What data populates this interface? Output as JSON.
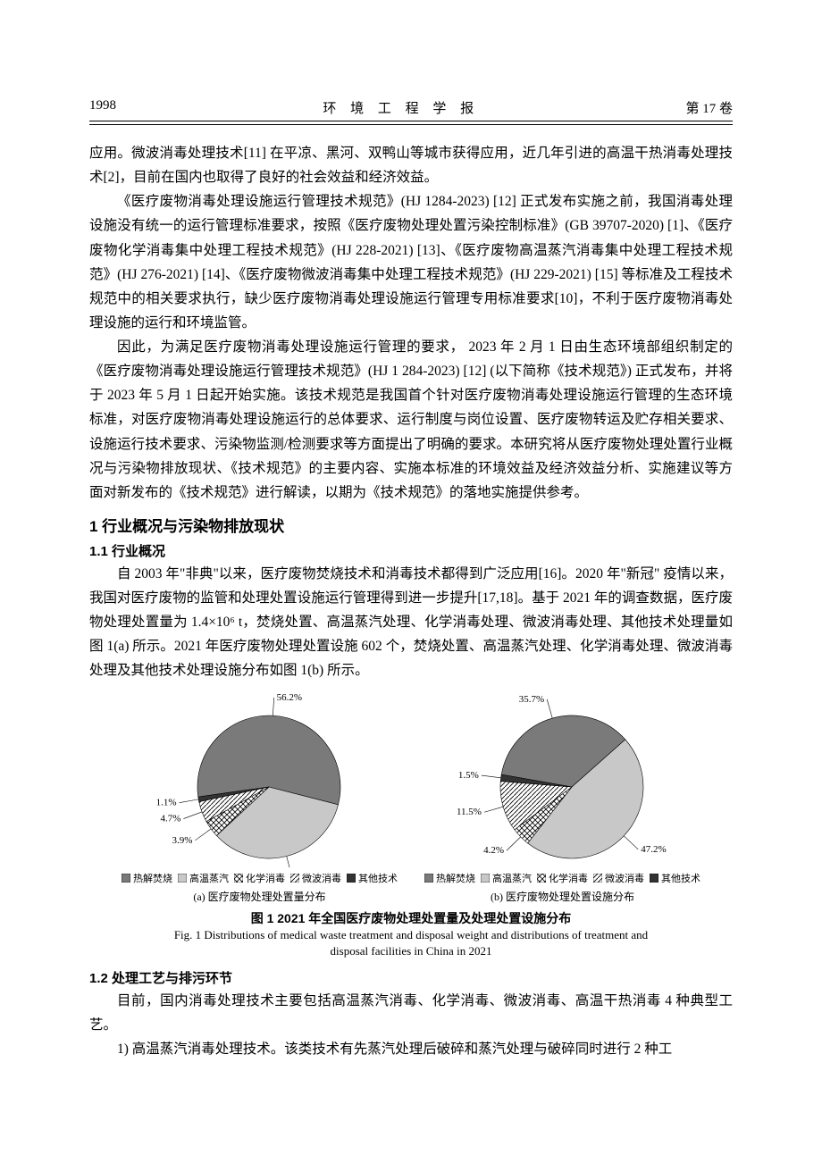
{
  "header": {
    "page_no": "1998",
    "journal": "环 境 工 程 学 报",
    "volume": "第 17 卷"
  },
  "paragraphs": {
    "p1": "应用。微波消毒处理技术[11] 在平凉、黑河、双鸭山等城市获得应用，近几年引进的高温干热消毒处理技术[2]，目前在国内也取得了良好的社会效益和经济效益。",
    "p2": "《医疗废物消毒处理设施运行管理技术规范》(HJ 1284-2023) [12] 正式发布实施之前，我国消毒处理设施没有统一的运行管理标准要求，按照《医疗废物处理处置污染控制标准》(GB 39707-2020) [1]、《医疗废物化学消毒集中处理工程技术规范》(HJ 228-2021) [13]、《医疗废物高温蒸汽消毒集中处理工程技术规范》(HJ 276-2021) [14]、《医疗废物微波消毒集中处理工程技术规范》(HJ 229-2021) [15] 等标准及工程技术规范中的相关要求执行，缺少医疗废物消毒处理设施运行管理专用标准要求[10]，不利于医疗废物消毒处理设施的运行和环境监管。",
    "p3": "因此，为满足医疗废物消毒处理设施运行管理的要求， 2023 年 2 月 1 日由生态环境部组织制定的《医疗废物消毒处理设施运行管理技术规范》(HJ 1 284-2023) [12] (以下简称《技术规范》) 正式发布，并将于 2023 年 5 月 1 日起开始实施。该技术规范是我国首个针对医疗废物消毒处理设施运行管理的生态环境标准，对医疗废物消毒处理设施运行的总体要求、运行制度与岗位设置、医疗废物转运及贮存相关要求、设施运行技术要求、污染物监测/检测要求等方面提出了明确的要求。本研究将从医疗废物处理处置行业概况与污染物排放现状、《技术规范》的主要内容、实施本标准的环境效益及经济效益分析、实施建议等方面对新发布的《技术规范》进行解读，以期为《技术规范》的落地实施提供参考。",
    "p4": "自 2003 年\"非典\"以来，医疗废物焚烧技术和消毒技术都得到广泛应用[16]。2020 年\"新冠\" 疫情以来，我国对医疗废物的监管和处理处置设施运行管理得到进一步提升[17,18]。基于 2021 年的调查数据，医疗废物处理处置量为 1.4×10⁶ t，焚烧处置、高温蒸汽处理、化学消毒处理、微波消毒处理、其他技术处理量如图 1(a) 所示。2021 年医疗废物处理处置设施 602 个，焚烧处置、高温蒸汽处理、化学消毒处理、微波消毒处理及其他技术处理设施分布如图 1(b) 所示。",
    "p5": "目前，国内消毒处理技术主要包括高温蒸汽消毒、化学消毒、微波消毒、高温干热消毒 4 种典型工艺。",
    "p6": "1) 高温蒸汽消毒处理技术。该类技术有先蒸汽处理后破碎和蒸汽处理与破碎同时进行 2 种工"
  },
  "sections": {
    "s1": "1  行业概况与污染物排放现状",
    "s1_1": "1.1  行业概况",
    "s1_2": "1.2  处理工艺与排污环节"
  },
  "figure": {
    "title_cn": "图 1   2021 年全国医疗废物处理处置量及处理处置设施分布",
    "title_en1": "Fig. 1    Distributions of medical waste treatment and disposal weight and distributions of treatment and",
    "title_en2": "disposal facilities in China in 2021",
    "sub_a": "(a) 医疗废物处理处置量分布",
    "sub_b": "(b) 医疗废物处理处置设施分布",
    "legend": [
      "热解焚烧",
      "高温蒸汽",
      "化学消毒",
      "微波消毒",
      "其他技术"
    ],
    "chart_a": {
      "type": "pie",
      "values": [
        56.2,
        34.1,
        3.9,
        4.7,
        1.1
      ],
      "labels": [
        "56.2%",
        "34.1%",
        "3.9%",
        "4.7%",
        "1.1%"
      ],
      "colors": [
        "#7a7a7a",
        "#c8c8c8",
        "pattern-cross",
        "pattern-diag",
        "#333333"
      ]
    },
    "chart_b": {
      "type": "pie",
      "values": [
        35.7,
        47.2,
        4.2,
        11.5,
        1.5
      ],
      "labels": [
        "35.7%",
        "47.2%",
        "4.2%",
        "11.5%",
        "1.5%"
      ],
      "colors": [
        "#7a7a7a",
        "#c8c8c8",
        "pattern-cross",
        "pattern-diag",
        "#333333"
      ]
    },
    "pie_radius": 80,
    "label_fontsize": 11
  },
  "colors": {
    "text": "#000000",
    "bg": "#ffffff",
    "slice_dark": "#7a7a7a",
    "slice_light": "#c8c8c8",
    "slice_black": "#333333",
    "line": "#000000"
  }
}
